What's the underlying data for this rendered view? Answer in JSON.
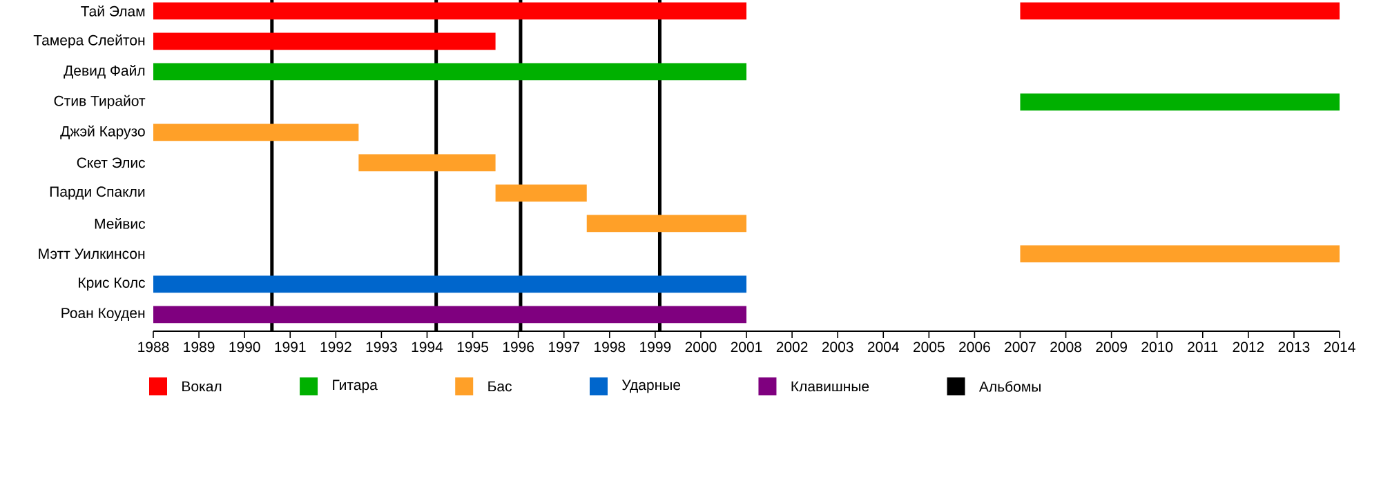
{
  "chart_data": {
    "type": "bar",
    "orientation": "horizontal",
    "categories": [
      "Тай Элам",
      "Тамера Слейтон",
      "Девид Файл",
      "Стив Тирайот",
      "Джэй Карузо",
      "Скет Элис",
      "Парди Спакли",
      "Мейвис",
      "Мэтт Уилкинсон",
      "Крис Колс",
      "Роан Коуден"
    ],
    "series": [
      {
        "name": "Вокал",
        "color": "#ff0000",
        "base": [
          1988,
          1988,
          null,
          null,
          null,
          null,
          null,
          null,
          null,
          null,
          null
        ],
        "values": [
          13,
          7.5,
          null,
          null,
          null,
          null,
          null,
          null,
          null,
          null,
          null
        ]
      },
      {
        "color": "#ff0000",
        "base": [
          2007,
          null,
          null,
          null,
          null,
          null,
          null,
          null,
          null,
          null,
          null
        ],
        "values": [
          7,
          null,
          null,
          null,
          null,
          null,
          null,
          null,
          null,
          null,
          null
        ]
      },
      {
        "name": "Гитара",
        "color": "#00b000",
        "base": [
          null,
          null,
          1988,
          2007,
          null,
          null,
          null,
          null,
          null,
          null,
          null
        ],
        "values": [
          null,
          null,
          13,
          7,
          null,
          null,
          null,
          null,
          null,
          null,
          null
        ]
      },
      {
        "name": "Бас",
        "color": "#ffa028",
        "base": [
          null,
          null,
          null,
          null,
          1988,
          1992.5,
          1995.5,
          1997.5,
          2007,
          null,
          null
        ],
        "values": [
          null,
          null,
          null,
          null,
          4.5,
          3,
          2,
          3.5,
          7,
          null,
          null
        ]
      },
      {
        "name": "Ударные",
        "color": "#0066cc",
        "base": [
          null,
          null,
          null,
          null,
          null,
          null,
          null,
          null,
          null,
          1988,
          null
        ],
        "values": [
          null,
          null,
          null,
          null,
          null,
          null,
          null,
          null,
          null,
          13,
          null
        ]
      },
      {
        "name": "Клавишные",
        "color": "#7f007f",
        "base": [
          null,
          null,
          null,
          null,
          null,
          null,
          null,
          null,
          null,
          null,
          1988
        ],
        "values": [
          null,
          null,
          null,
          null,
          null,
          null,
          null,
          null,
          null,
          null,
          13
        ]
      }
    ],
    "xlim": [
      1988,
      2014
    ],
    "xticks": [
      1988,
      1989,
      1990,
      1991,
      1992,
      1993,
      1994,
      1995,
      1996,
      1997,
      1998,
      1999,
      2000,
      2001,
      2002,
      2003,
      2004,
      2005,
      2006,
      2007,
      2008,
      2009,
      2010,
      2011,
      2012,
      2013,
      2014
    ],
    "ref_lines": [
      {
        "axis": "x",
        "value": 1990.6,
        "label": "Альбомы",
        "color": "#000000"
      },
      {
        "axis": "x",
        "value": 1994.2,
        "color": "#000000"
      },
      {
        "axis": "x",
        "value": 1996.05,
        "color": "#000000"
      },
      {
        "axis": "x",
        "value": 1999.1,
        "color": "#000000"
      }
    ],
    "legend": "bottom"
  }
}
